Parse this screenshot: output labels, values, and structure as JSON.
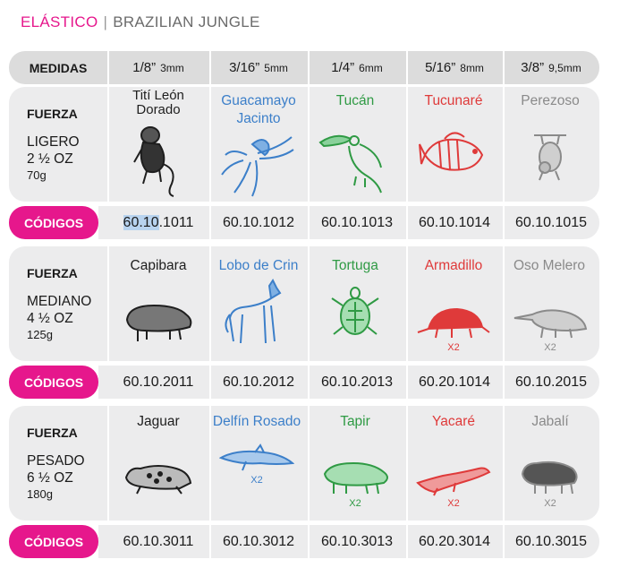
{
  "header": {
    "brand": "ELÁSTICO",
    "separator": "|",
    "subtitle": "BRAZILIAN JUNGLE"
  },
  "measures": {
    "label": "MEDIDAS",
    "items": [
      {
        "inch": "1/8”",
        "mm": "3mm"
      },
      {
        "inch": "3/16”",
        "mm": "5mm"
      },
      {
        "inch": "1/4”",
        "mm": "6mm"
      },
      {
        "inch": "5/16”",
        "mm": "8mm"
      },
      {
        "inch": "3/8”",
        "mm": "9,5mm"
      }
    ]
  },
  "codes_label": "CÓDIGOS",
  "sections": [
    {
      "fuerza_label": "FUERZA",
      "level": "LIGERO",
      "oz": "2 ½ OZ",
      "grams": "70g",
      "animals": [
        {
          "name": "Tití León Dorado",
          "color": "#1e1e1e",
          "icon": "monkey-icon",
          "x2": ""
        },
        {
          "name": "Guacamayo Jacinto",
          "color": "#3c7fc9",
          "icon": "macaw-icon",
          "x2": ""
        },
        {
          "name": "Tucán",
          "color": "#2f9a44",
          "icon": "toucan-icon",
          "x2": ""
        },
        {
          "name": "Tucunaré",
          "color": "#df3a3a",
          "icon": "fish-icon",
          "x2": ""
        },
        {
          "name": "Perezoso",
          "color": "#8a8a8a",
          "icon": "sloth-icon",
          "x2": ""
        }
      ],
      "codes": [
        "60.10.1011",
        "60.10.1012",
        "60.10.1013",
        "60.10.1014",
        "60.10.1015"
      ]
    },
    {
      "fuerza_label": "FUERZA",
      "level": "MEDIANO",
      "oz": "4 ½ OZ",
      "grams": "125g",
      "animals": [
        {
          "name": "Capibara",
          "color": "#1e1e1e",
          "icon": "capybara-icon",
          "x2": ""
        },
        {
          "name": "Lobo de Crin",
          "color": "#3c7fc9",
          "icon": "wolf-icon",
          "x2": ""
        },
        {
          "name": "Tortuga",
          "color": "#2f9a44",
          "icon": "turtle-icon",
          "x2": ""
        },
        {
          "name": "Armadillo",
          "color": "#df3a3a",
          "icon": "armadillo-icon",
          "x2": "X2"
        },
        {
          "name": "Oso Melero",
          "color": "#8a8a8a",
          "icon": "anteater-icon",
          "x2": "X2"
        }
      ],
      "codes": [
        "60.10.2011",
        "60.10.2012",
        "60.10.2013",
        "60.20.1014",
        "60.10.2015"
      ]
    },
    {
      "fuerza_label": "FUERZA",
      "level": "PESADO",
      "oz": "6 ½ OZ",
      "grams": "180g",
      "animals": [
        {
          "name": "Jaguar",
          "color": "#1e1e1e",
          "icon": "jaguar-icon",
          "x2": ""
        },
        {
          "name": "Delfín Rosado",
          "color": "#3c7fc9",
          "icon": "dolphin-icon",
          "x2": "X2"
        },
        {
          "name": "Tapir",
          "color": "#2f9a44",
          "icon": "tapir-icon",
          "x2": "X2"
        },
        {
          "name": "Yacaré",
          "color": "#df3a3a",
          "icon": "caiman-icon",
          "x2": "X2"
        },
        {
          "name": "Jabalí",
          "color": "#8a8a8a",
          "icon": "boar-icon",
          "x2": "X2"
        }
      ],
      "codes": [
        "60.10.3011",
        "60.10.3012",
        "60.10.3013",
        "60.20.3014",
        "60.10.3015"
      ]
    }
  ]
}
